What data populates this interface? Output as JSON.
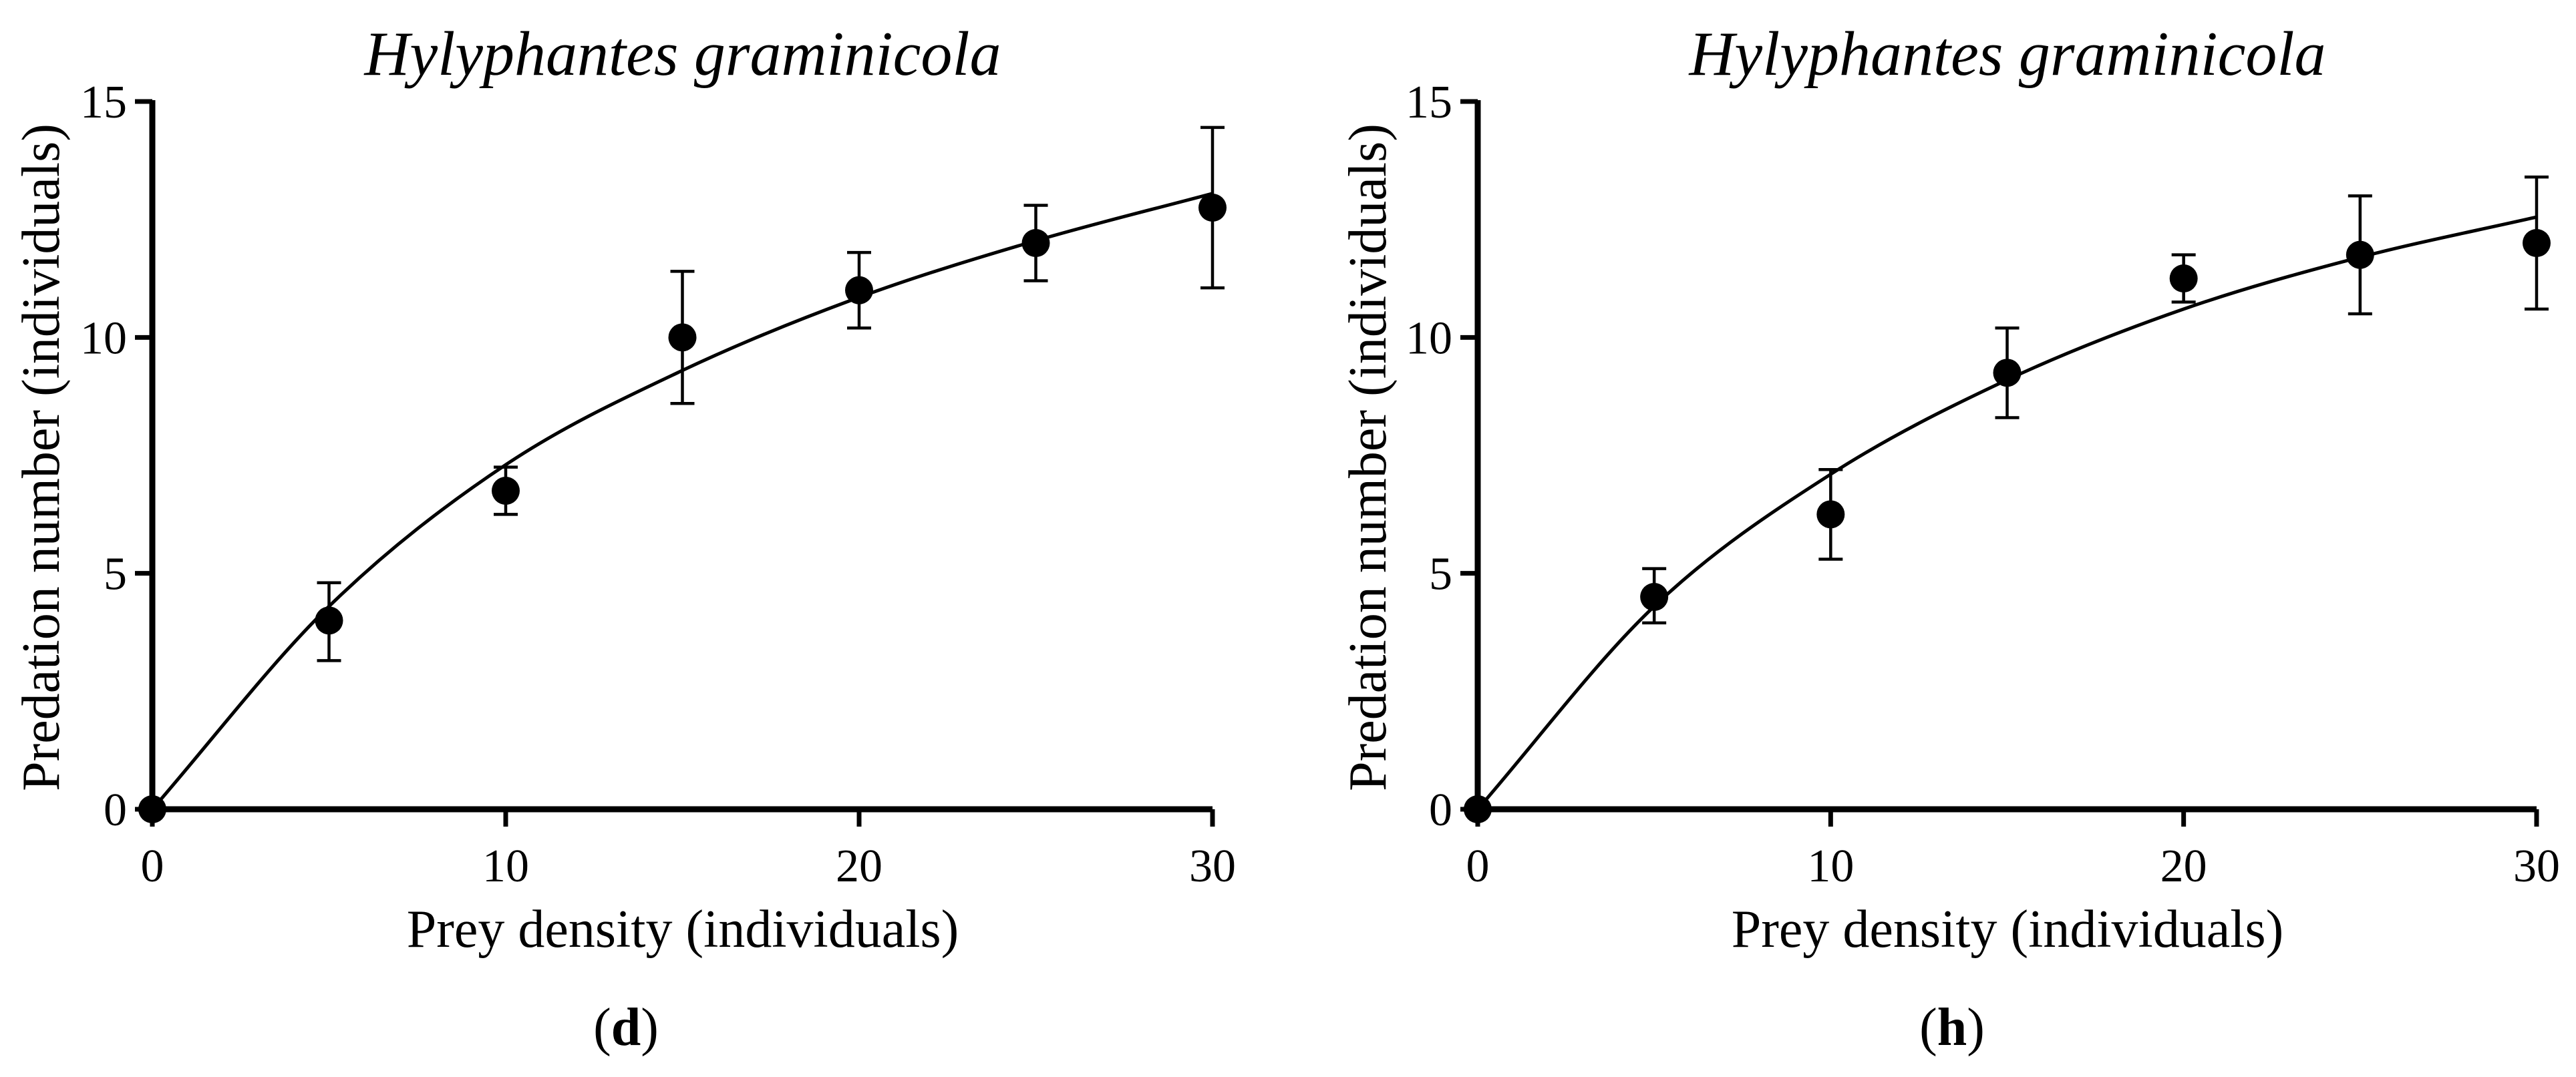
{
  "chart_data": [
    {
      "type": "scatter",
      "title": "Hylyphantes graminicola",
      "xlabel": "Prey density (individuals)",
      "ylabel": "Predation number (individuals)",
      "panel_label": "d",
      "xlim": [
        0,
        30
      ],
      "ylim": [
        0,
        15
      ],
      "xticks": [
        0,
        10,
        20,
        30
      ],
      "yticks": [
        0,
        5,
        10,
        15
      ],
      "series": [
        {
          "name": "observed",
          "x": [
            0,
            5,
            10,
            15,
            20,
            25,
            30
          ],
          "y": [
            0,
            4.0,
            6.75,
            10.0,
            11.0,
            12.0,
            12.75
          ],
          "err_low": [
            0,
            3.15,
            6.25,
            8.6,
            10.2,
            11.2,
            11.05
          ],
          "err_high": [
            0,
            4.8,
            7.25,
            11.4,
            11.8,
            12.8,
            14.45
          ]
        }
      ],
      "fit": {
        "name": "fitted curve",
        "x": [
          0,
          5,
          10,
          15,
          20,
          25,
          30
        ],
        "y": [
          0,
          4.3,
          7.3,
          9.3,
          10.85,
          12.05,
          13.05
        ]
      }
    },
    {
      "type": "scatter",
      "title": "Hylyphantes graminicola",
      "xlabel": "Prey density (individuals)",
      "ylabel": "Predation number (individuals)",
      "panel_label": "h",
      "xlim": [
        0,
        30
      ],
      "ylim": [
        0,
        15
      ],
      "xticks": [
        0,
        10,
        20,
        30
      ],
      "yticks": [
        0,
        5,
        10,
        15
      ],
      "series": [
        {
          "name": "observed",
          "x": [
            0,
            5,
            10,
            15,
            20,
            25,
            30
          ],
          "y": [
            0,
            4.5,
            6.25,
            9.25,
            11.25,
            11.75,
            12.0
          ],
          "err_low": [
            0,
            3.95,
            5.3,
            8.3,
            10.75,
            10.5,
            10.6
          ],
          "err_high": [
            0,
            5.1,
            7.2,
            10.2,
            11.75,
            13.0,
            13.4
          ]
        }
      ],
      "fit": {
        "name": "fitted curve",
        "x": [
          0,
          5,
          10,
          15,
          20,
          25,
          30
        ],
        "y": [
          0,
          4.3,
          7.1,
          9.1,
          10.6,
          11.7,
          12.55
        ]
      }
    }
  ]
}
